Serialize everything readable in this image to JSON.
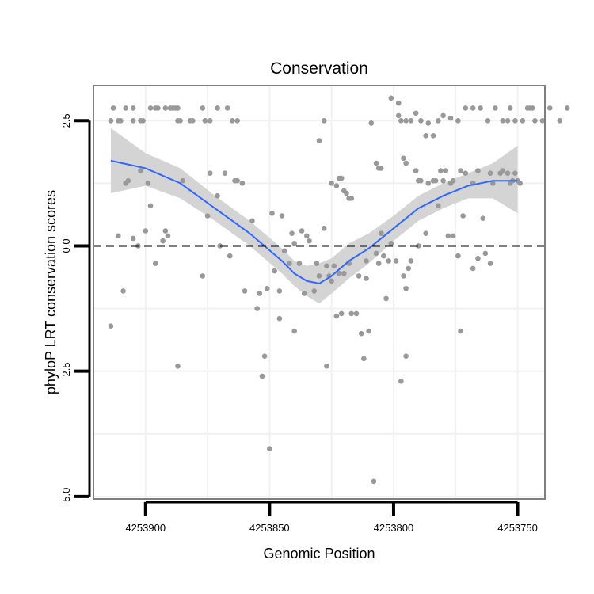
{
  "chart_data": {
    "type": "scatter",
    "title": "Conservation",
    "xlabel": "Genomic Position",
    "ylabel": "phyloP LRT conservation scores",
    "x_reversed": true,
    "xlim": [
      4253921,
      4253739
    ],
    "ylim": [
      -5.05,
      3.2
    ],
    "x_ticks": [
      4253900,
      4253850,
      4253800,
      4253750
    ],
    "x_tick_labels": [
      "4253900",
      "4253850",
      "4253800",
      "4253750"
    ],
    "y_ticks": [
      -5,
      -2.5,
      0,
      2.5
    ],
    "y_tick_labels": [
      "-5.0",
      "-2.5",
      "0.0",
      "2.5"
    ],
    "grid": true,
    "reference_line": {
      "y": 0,
      "style": "dashed",
      "color": "#000000"
    },
    "colors": {
      "points": "#999999",
      "smooth_line": "#3366ff",
      "ribbon": "#d4d4d4",
      "grid": "#f1f1f1",
      "panel_border": "#7f7f7f"
    },
    "series": [
      {
        "type": "scatter",
        "points": [
          [
            4253914,
            2.5
          ],
          [
            4253913,
            2.75
          ],
          [
            4253911,
            2.5
          ],
          [
            4253910,
            2.5
          ],
          [
            4253908,
            2.75
          ],
          [
            4253905,
            2.75
          ],
          [
            4253905,
            2.5
          ],
          [
            4253902,
            2.5
          ],
          [
            4253901,
            2.5
          ],
          [
            4253898,
            2.75
          ],
          [
            4253896,
            2.75
          ],
          [
            4253895,
            2.75
          ],
          [
            4253892,
            2.75
          ],
          [
            4253890,
            2.75
          ],
          [
            4253889,
            2.75
          ],
          [
            4253888,
            2.75
          ],
          [
            4253887,
            2.5
          ],
          [
            4253887,
            2.75
          ],
          [
            4253886,
            2.5
          ],
          [
            4253882,
            2.5
          ],
          [
            4253881,
            2.5
          ],
          [
            4253876,
            2.5
          ],
          [
            4253876,
            2.5
          ],
          [
            4253874,
            2.5
          ],
          [
            4253877,
            2.75
          ],
          [
            4253871,
            2.75
          ],
          [
            4253867,
            2.75
          ],
          [
            4253863,
            2.5
          ],
          [
            4253865,
            2.5
          ],
          [
            4253914,
            -1.6
          ],
          [
            4253911,
            0.2
          ],
          [
            4253909,
            -0.9
          ],
          [
            4253908,
            1.25
          ],
          [
            4253907,
            1.3
          ],
          [
            4253905,
            0.15
          ],
          [
            4253903,
            0.0
          ],
          [
            4253902,
            1.5
          ],
          [
            4253900,
            0.3
          ],
          [
            4253899,
            1.25
          ],
          [
            4253898,
            0.8
          ],
          [
            4253896,
            -0.35
          ],
          [
            4253893,
            0.1
          ],
          [
            4253892,
            0.3
          ],
          [
            4253891,
            0.2
          ],
          [
            4253887,
            -2.4
          ],
          [
            4253885,
            1.3
          ],
          [
            4253877,
            -0.6
          ],
          [
            4253875,
            0.6
          ],
          [
            4253874,
            1.45
          ],
          [
            4253871,
            1.0
          ],
          [
            4253870,
            0.0
          ],
          [
            4253868,
            1.45
          ],
          [
            4253866,
            -0.2
          ],
          [
            4253864,
            1.3
          ],
          [
            4253863,
            1.3
          ],
          [
            4253861,
            1.25
          ],
          [
            4253860,
            -0.9
          ],
          [
            4253857,
            0.5
          ],
          [
            4253855,
            -1.25
          ],
          [
            4253854,
            -0.95
          ],
          [
            4253853,
            -2.6
          ],
          [
            4253852,
            -2.2
          ],
          [
            4253851,
            -0.85
          ],
          [
            4253850,
            -4.05
          ],
          [
            4253849,
            0.65
          ],
          [
            4253848,
            -0.5
          ],
          [
            4253846,
            -0.9
          ],
          [
            4253846,
            -1.45
          ],
          [
            4253845,
            0.6
          ],
          [
            4253844,
            -0.1
          ],
          [
            4253842,
            -0.35
          ],
          [
            4253841,
            0.25
          ],
          [
            4253840,
            -1.7
          ],
          [
            4253840,
            0.05
          ],
          [
            4253838,
            -0.35
          ],
          [
            4253837,
            0.3
          ],
          [
            4253836,
            -0.95
          ],
          [
            4253835,
            0.2
          ],
          [
            4253834,
            0.1
          ],
          [
            4253832,
            -0.9
          ],
          [
            4253831,
            -0.35
          ],
          [
            4253830,
            -0.6
          ],
          [
            4253828,
            0.35
          ],
          [
            4253827,
            -2.4
          ],
          [
            4253827,
            -0.4
          ],
          [
            4253826,
            -0.6
          ],
          [
            4253825,
            -0.7
          ],
          [
            4253824,
            -0.4
          ],
          [
            4253823,
            -1.4
          ],
          [
            4253822,
            -0.55
          ],
          [
            4253821,
            -1.35
          ],
          [
            4253820,
            -0.55
          ],
          [
            4253818,
            -0.35
          ],
          [
            4253817,
            -1.35
          ],
          [
            4253815,
            -1.35
          ],
          [
            4253814,
            -0.6
          ],
          [
            4253813,
            -1.75
          ],
          [
            4253812,
            -2.25
          ],
          [
            4253811,
            -0.65
          ],
          [
            4253811,
            -0.3
          ],
          [
            4253810,
            -1.7
          ],
          [
            4253808,
            -4.7
          ],
          [
            4253807,
            -0.15
          ],
          [
            4253806,
            -0.35
          ],
          [
            4253805,
            0.25
          ],
          [
            4253804,
            -0.2
          ],
          [
            4253803,
            -1.05
          ],
          [
            4253802,
            -0.3
          ],
          [
            4253801,
            0.05
          ],
          [
            4253799,
            -0.3
          ],
          [
            4253797,
            -2.7
          ],
          [
            4253796,
            -0.6
          ],
          [
            4253795,
            -0.85
          ],
          [
            4253795,
            -2.2
          ],
          [
            4253794,
            -0.45
          ],
          [
            4253793,
            -0.3
          ],
          [
            4253791,
            1.5
          ],
          [
            4253790,
            0.0
          ],
          [
            4253787,
            0.25
          ],
          [
            4253782,
            0.8
          ],
          [
            4253780,
            1.3
          ],
          [
            4253778,
            0.2
          ],
          [
            4253776,
            0.2
          ],
          [
            4253774,
            -0.2
          ],
          [
            4253773,
            -1.7
          ],
          [
            4253772,
            0.6
          ],
          [
            4253768,
            -0.45
          ],
          [
            4253766,
            -0.25
          ],
          [
            4253764,
            0.55
          ],
          [
            4253763,
            -0.15
          ],
          [
            4253761,
            -0.35
          ],
          [
            4253806,
            1.55
          ],
          [
            4253805,
            1.55
          ],
          [
            4253801,
            2.95
          ],
          [
            4253798,
            2.85
          ],
          [
            4253798,
            2.6
          ],
          [
            4253796,
            1.75
          ],
          [
            4253795,
            1.65
          ],
          [
            4253790,
            1.3
          ],
          [
            4253789,
            1.3
          ],
          [
            4253786,
            1.25
          ],
          [
            4253784,
            1.3
          ],
          [
            4253783,
            1.3
          ],
          [
            4253781,
            1.5
          ],
          [
            4253779,
            1.5
          ],
          [
            4253777,
            1.25
          ],
          [
            4253776,
            1.3
          ],
          [
            4253773,
            1.5
          ],
          [
            4253771,
            1.45
          ],
          [
            4253768,
            1.25
          ],
          [
            4253766,
            1.5
          ],
          [
            4253761,
            1.45
          ],
          [
            4253760,
            1.25
          ],
          [
            4253757,
            1.45
          ],
          [
            4253756,
            1.5
          ],
          [
            4253754,
            1.45
          ],
          [
            4253753,
            1.25
          ],
          [
            4253751,
            1.45
          ],
          [
            4253750,
            1.3
          ],
          [
            4253749,
            1.25
          ],
          [
            4253752,
            1.3
          ],
          [
            4253797,
            2.5
          ],
          [
            4253795,
            2.5
          ],
          [
            4253793,
            2.5
          ],
          [
            4253791,
            2.65
          ],
          [
            4253789,
            2.5
          ],
          [
            4253787,
            2.2
          ],
          [
            4253786,
            2.45
          ],
          [
            4253784,
            2.2
          ],
          [
            4253782,
            2.5
          ],
          [
            4253780,
            2.6
          ],
          [
            4253777,
            2.55
          ],
          [
            4253774,
            2.5
          ],
          [
            4253771,
            2.75
          ],
          [
            4253768,
            2.75
          ],
          [
            4253765,
            2.75
          ],
          [
            4253762,
            2.5
          ],
          [
            4253759,
            2.75
          ],
          [
            4253756,
            2.5
          ],
          [
            4253754,
            2.5
          ],
          [
            4253753,
            2.75
          ],
          [
            4253751,
            2.5
          ],
          [
            4253748,
            2.5
          ],
          [
            4253746,
            2.75
          ],
          [
            4253745,
            2.75
          ],
          [
            4253744,
            2.75
          ],
          [
            4253743,
            2.5
          ],
          [
            4253740,
            2.5
          ],
          [
            4253737,
            2.75
          ],
          [
            4253733,
            2.5
          ],
          [
            4253730,
            2.75
          ],
          [
            4253830,
            2.1
          ],
          [
            4253828,
            2.5
          ],
          [
            4253825,
            1.25
          ],
          [
            4253823,
            1.2
          ],
          [
            4253822,
            1.35
          ],
          [
            4253821,
            1.35
          ],
          [
            4253820,
            1.1
          ],
          [
            4253819,
            1.05
          ],
          [
            4253818,
            0.95
          ],
          [
            4253817,
            0.95
          ],
          [
            4253809,
            2.45
          ],
          [
            4253809,
            2.45
          ],
          [
            4253807,
            1.65
          ]
        ]
      },
      {
        "type": "smooth",
        "name": "",
        "x": [
          4253914,
          4253900,
          4253886,
          4253872,
          4253858,
          4253845,
          4253840,
          4253835,
          4253830,
          4253825,
          4253818,
          4253810,
          4253800,
          4253790,
          4253780,
          4253770,
          4253760,
          4253750
        ],
        "y": [
          1.7,
          1.55,
          1.25,
          0.75,
          0.25,
          -0.3,
          -0.55,
          -0.7,
          -0.75,
          -0.6,
          -0.3,
          -0.05,
          0.35,
          0.75,
          1.0,
          1.2,
          1.3,
          1.3
        ],
        "lower": [
          1.05,
          1.2,
          0.95,
          0.5,
          0.0,
          -0.55,
          -0.8,
          -1.0,
          -1.15,
          -0.95,
          -0.65,
          -0.35,
          0.1,
          0.5,
          0.75,
          0.95,
          0.95,
          0.65
        ],
        "upper": [
          2.35,
          1.85,
          1.55,
          1.0,
          0.5,
          -0.05,
          -0.3,
          -0.4,
          -0.35,
          -0.25,
          0.05,
          0.25,
          0.6,
          1.0,
          1.25,
          1.45,
          1.65,
          2.0
        ]
      }
    ]
  }
}
